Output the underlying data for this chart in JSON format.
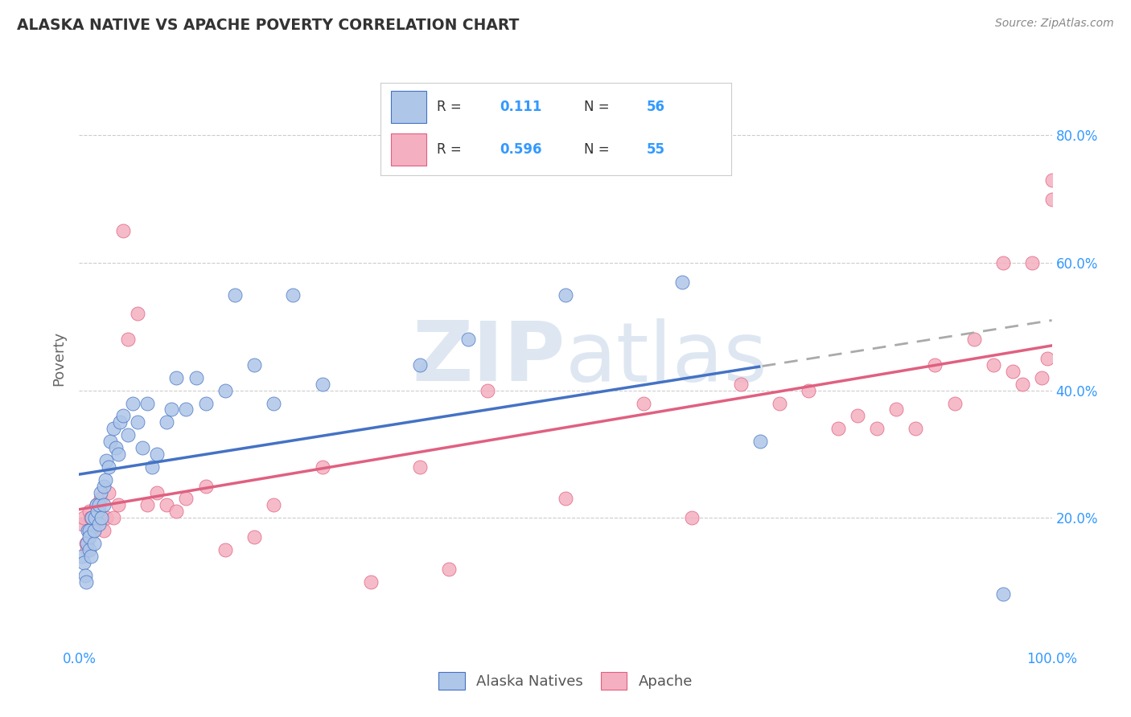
{
  "title": "ALASKA NATIVE VS APACHE POVERTY CORRELATION CHART",
  "source": "Source: ZipAtlas.com",
  "ylabel": "Poverty",
  "xlim": [
    0.0,
    1.0
  ],
  "ylim": [
    0.0,
    0.9
  ],
  "xtick_vals": [
    0.0,
    0.2,
    0.4,
    0.6,
    0.8,
    1.0
  ],
  "xtick_labels": [
    "0.0%",
    "",
    "",
    "",
    "",
    "100.0%"
  ],
  "ytick_vals": [
    0.2,
    0.4,
    0.6,
    0.8
  ],
  "ytick_labels": [
    "20.0%",
    "40.0%",
    "60.0%",
    "80.0%"
  ],
  "legend_r1": "0.111",
  "legend_n1": "56",
  "legend_r2": "0.596",
  "legend_n2": "55",
  "color_alaska": "#aec6e8",
  "color_apache": "#f4afc0",
  "line_alaska": "#4472c4",
  "line_apache": "#e06080",
  "watermark_color": "#c8d8e8",
  "alaska_x": [
    0.003,
    0.005,
    0.006,
    0.007,
    0.008,
    0.009,
    0.01,
    0.01,
    0.01,
    0.012,
    0.013,
    0.015,
    0.015,
    0.016,
    0.018,
    0.019,
    0.02,
    0.02,
    0.022,
    0.023,
    0.025,
    0.025,
    0.027,
    0.028,
    0.03,
    0.032,
    0.035,
    0.038,
    0.04,
    0.042,
    0.045,
    0.05,
    0.055,
    0.06,
    0.065,
    0.07,
    0.075,
    0.08,
    0.09,
    0.095,
    0.1,
    0.11,
    0.12,
    0.13,
    0.15,
    0.16,
    0.18,
    0.2,
    0.22,
    0.25,
    0.35,
    0.4,
    0.5,
    0.62,
    0.7,
    0.95
  ],
  "alaska_y": [
    0.14,
    0.13,
    0.11,
    0.1,
    0.16,
    0.18,
    0.15,
    0.18,
    0.17,
    0.14,
    0.2,
    0.16,
    0.18,
    0.2,
    0.22,
    0.21,
    0.22,
    0.19,
    0.24,
    0.2,
    0.22,
    0.25,
    0.26,
    0.29,
    0.28,
    0.32,
    0.34,
    0.31,
    0.3,
    0.35,
    0.36,
    0.33,
    0.38,
    0.35,
    0.31,
    0.38,
    0.28,
    0.3,
    0.35,
    0.37,
    0.42,
    0.37,
    0.42,
    0.38,
    0.4,
    0.55,
    0.44,
    0.38,
    0.55,
    0.41,
    0.44,
    0.48,
    0.55,
    0.57,
    0.32,
    0.08
  ],
  "apache_x": [
    0.003,
    0.005,
    0.007,
    0.008,
    0.01,
    0.012,
    0.015,
    0.018,
    0.02,
    0.022,
    0.025,
    0.028,
    0.03,
    0.035,
    0.04,
    0.045,
    0.05,
    0.06,
    0.07,
    0.08,
    0.09,
    0.1,
    0.11,
    0.13,
    0.15,
    0.18,
    0.2,
    0.25,
    0.3,
    0.35,
    0.38,
    0.42,
    0.5,
    0.58,
    0.63,
    0.68,
    0.72,
    0.75,
    0.78,
    0.8,
    0.82,
    0.84,
    0.86,
    0.88,
    0.9,
    0.92,
    0.94,
    0.95,
    0.96,
    0.97,
    0.98,
    0.99,
    0.995,
    1.0,
    1.0
  ],
  "apache_y": [
    0.19,
    0.2,
    0.16,
    0.15,
    0.21,
    0.2,
    0.18,
    0.22,
    0.21,
    0.23,
    0.18,
    0.2,
    0.24,
    0.2,
    0.22,
    0.65,
    0.48,
    0.52,
    0.22,
    0.24,
    0.22,
    0.21,
    0.23,
    0.25,
    0.15,
    0.17,
    0.22,
    0.28,
    0.1,
    0.28,
    0.12,
    0.4,
    0.23,
    0.38,
    0.2,
    0.41,
    0.38,
    0.4,
    0.34,
    0.36,
    0.34,
    0.37,
    0.34,
    0.44,
    0.38,
    0.48,
    0.44,
    0.6,
    0.43,
    0.41,
    0.6,
    0.42,
    0.45,
    0.73,
    0.7
  ]
}
